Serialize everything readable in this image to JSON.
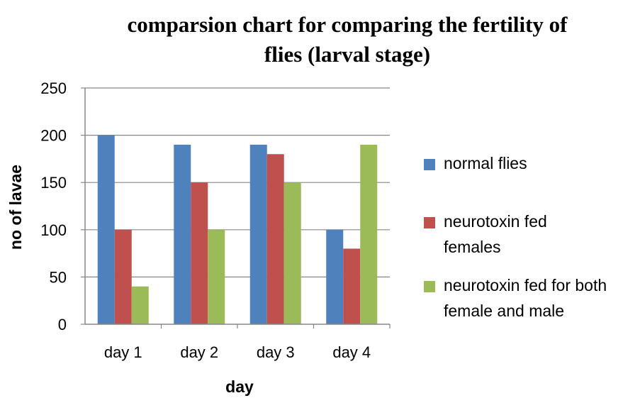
{
  "chart_data": {
    "type": "bar",
    "title": "comparsion  chart for comparing the fertility of\nflies (larval stage)",
    "xlabel": "day",
    "ylabel": "no of lavae",
    "categories": [
      "day 1",
      "day 2",
      "day 3",
      "day 4"
    ],
    "ylim": [
      0,
      250
    ],
    "yticks": [
      0,
      50,
      100,
      150,
      200,
      250
    ],
    "grid": true,
    "legend_position": "right",
    "series": [
      {
        "name": "normal flies",
        "values": [
          200,
          190,
          190,
          100
        ],
        "color": "#4F81BD"
      },
      {
        "name": "neurotoxin fed females",
        "values": [
          100,
          150,
          180,
          80
        ],
        "color": "#C0504D"
      },
      {
        "name": "neurotoxin fed for both female and male",
        "values": [
          40,
          100,
          150,
          190
        ],
        "color": "#9BBB59"
      }
    ]
  }
}
